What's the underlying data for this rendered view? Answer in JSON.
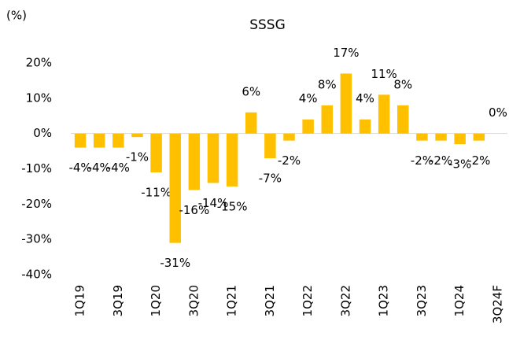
{
  "chart_data": {
    "type": "bar",
    "title": "SSSG",
    "y_label": "(%)",
    "categories": [
      "1Q19",
      null,
      "3Q19",
      null,
      "1Q20",
      null,
      "3Q20",
      null,
      "1Q21",
      null,
      "3Q21",
      null,
      "1Q22",
      null,
      "3Q22",
      null,
      "1Q23",
      null,
      "3Q23",
      null,
      "1Q24",
      null,
      "3Q24F"
    ],
    "values": [
      -4,
      -4,
      -4,
      -1,
      -11,
      -31,
      -16,
      -14,
      -15,
      6,
      -7,
      -2,
      4,
      8,
      17,
      4,
      11,
      8,
      -2,
      -2,
      -3,
      -2,
      0
    ],
    "value_labels": [
      "-4%",
      "-4%",
      "-4%",
      "-1%",
      "-11%",
      "-31%",
      "-16%",
      "-14%",
      "-15%",
      "6%",
      "-7%",
      "-2%",
      "4%",
      "8%",
      "17%",
      "4%",
      "11%",
      "8%",
      "-2%",
      "-2%",
      "-3%",
      "-2%",
      "0%"
    ],
    "color": "#FFC000",
    "ylim": [
      -40,
      20
    ],
    "yticks": [
      {
        "value": -40,
        "label": "-40%"
      },
      {
        "value": -30,
        "label": "-30%"
      },
      {
        "value": -20,
        "label": "-20%"
      },
      {
        "value": -10,
        "label": "-10%"
      },
      {
        "value": 0,
        "label": "0%"
      },
      {
        "value": 10,
        "label": "10%"
      },
      {
        "value": 20,
        "label": "20%"
      }
    ],
    "grid": false
  }
}
